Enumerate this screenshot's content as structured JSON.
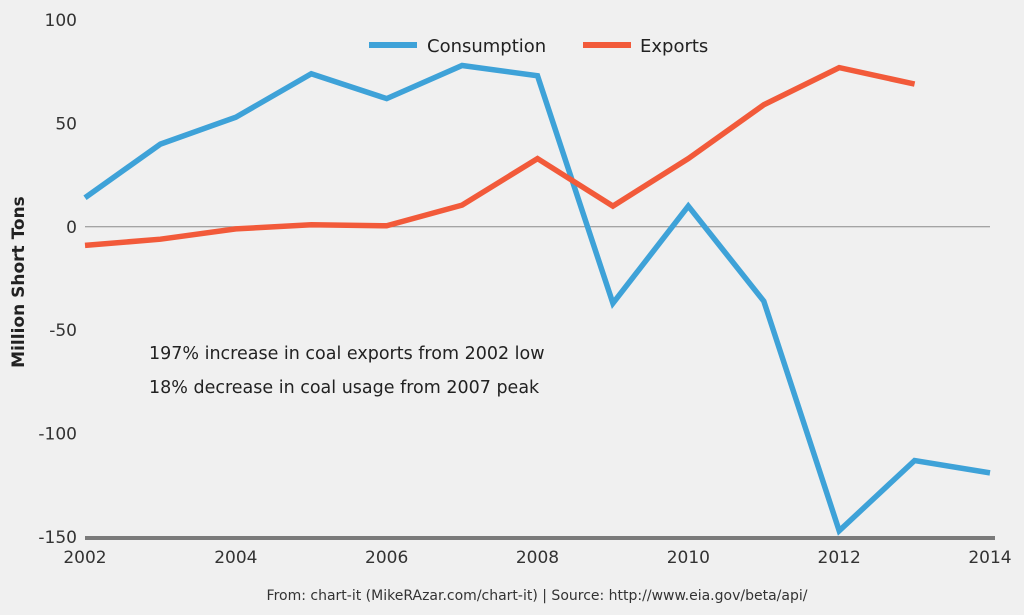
{
  "chart_data": {
    "type": "line",
    "title": "",
    "xlabel": "",
    "ylabel": "Million Short Tons",
    "xlim": [
      2002,
      2014
    ],
    "ylim": [
      -150,
      100
    ],
    "x_ticks": [
      "2002",
      "2004",
      "2006",
      "2008",
      "2010",
      "2012",
      "2014"
    ],
    "y_ticks": [
      "100",
      "50",
      "0",
      "-50",
      "-100",
      "-150"
    ],
    "legend_position": "top-center",
    "series": [
      {
        "name": "Consumption",
        "color": "#3ea2d8",
        "x": [
          2002,
          2003,
          2004,
          2005,
          2006,
          2007,
          2008,
          2009,
          2010,
          2011,
          2012,
          2013,
          2014
        ],
        "values": [
          14,
          40,
          53,
          74,
          62,
          78,
          73,
          -37,
          10,
          -36,
          -147,
          -113,
          -119
        ]
      },
      {
        "name": "Exports",
        "color": "#f25a3a",
        "x": [
          2002,
          2003,
          2004,
          2005,
          2006,
          2007,
          2008,
          2009,
          2010,
          2011,
          2012,
          2013
        ],
        "values": [
          -9,
          -6,
          -1,
          1,
          0.5,
          10.5,
          33,
          10,
          33,
          59,
          77,
          69
        ]
      }
    ],
    "annotations": [
      "197% increase in coal exports from 2002 low",
      "18% decrease in coal usage from 2007 peak"
    ],
    "footer": "From: chart-it (MikeRAzar.com/chart-it) | Source: http://www.eia.gov/beta/api/"
  }
}
